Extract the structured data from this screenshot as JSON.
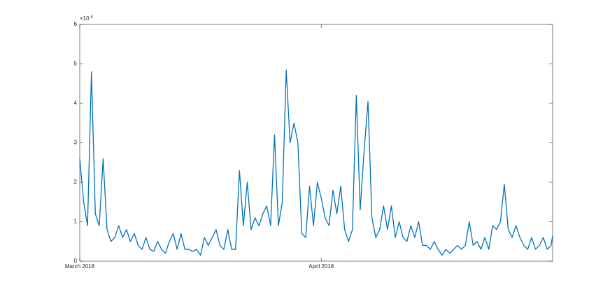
{
  "chart_data": {
    "type": "line",
    "axis_multiplier": {
      "base": "×10",
      "exponent": "-4"
    },
    "x": [
      0,
      0.5,
      1,
      1.5,
      2,
      2.5,
      3,
      3.5,
      4,
      4.5,
      5,
      5.5,
      6,
      6.5,
      7,
      7.5,
      8,
      8.5,
      9,
      9.5,
      10,
      10.5,
      11,
      11.5,
      12,
      12.5,
      13,
      13.5,
      14,
      14.5,
      15,
      15.5,
      16,
      16.5,
      17,
      17.5,
      18,
      18.5,
      19,
      19.5,
      20,
      20.5,
      21,
      21.5,
      22,
      22.5,
      23,
      23.5,
      24,
      24.5,
      25,
      25.5,
      26,
      26.5,
      27,
      27.5,
      28,
      28.5,
      29,
      29.5,
      30,
      30.5,
      31,
      31.5,
      32,
      32.5,
      33,
      33.5,
      34,
      34.5,
      35,
      35.5,
      36,
      36.5,
      37,
      37.5,
      38,
      38.5,
      39,
      39.5,
      40,
      40.5,
      41,
      41.5,
      42,
      42.5,
      43,
      43.5,
      44,
      44.5,
      45,
      45.5,
      46,
      46.5,
      47,
      47.5,
      48,
      48.5,
      49,
      49.5,
      50,
      50.5,
      51,
      51.5,
      52,
      52.5,
      53,
      53.5,
      54,
      54.5,
      55,
      55.5,
      56,
      56.5,
      57,
      57.5,
      58,
      58.5,
      59,
      59.5,
      60,
      60.5,
      60.7
    ],
    "series": [
      {
        "color": "#0072bd",
        "values": [
          2.6,
          1.5,
          0.9,
          4.8,
          1.2,
          0.9,
          2.6,
          0.8,
          0.5,
          0.6,
          0.9,
          0.6,
          0.8,
          0.5,
          0.7,
          0.4,
          0.3,
          0.6,
          0.3,
          0.25,
          0.5,
          0.3,
          0.2,
          0.5,
          0.7,
          0.3,
          0.7,
          0.3,
          0.3,
          0.25,
          0.3,
          0.15,
          0.6,
          0.4,
          0.6,
          0.8,
          0.4,
          0.3,
          0.8,
          0.3,
          0.3,
          2.3,
          0.9,
          2.0,
          0.8,
          1.1,
          0.9,
          1.2,
          1.4,
          0.9,
          3.2,
          0.9,
          1.5,
          4.85,
          3.0,
          3.5,
          3.0,
          0.7,
          0.6,
          1.9,
          0.9,
          2.0,
          1.6,
          1.1,
          0.9,
          1.8,
          1.2,
          1.9,
          0.8,
          0.5,
          0.8,
          4.2,
          1.3,
          2.8,
          4.05,
          1.1,
          0.6,
          0.8,
          1.4,
          0.8,
          1.4,
          0.6,
          1.0,
          0.6,
          0.5,
          0.9,
          0.6,
          1.0,
          0.4,
          0.4,
          0.3,
          0.5,
          0.3,
          0.15,
          0.3,
          0.2,
          0.3,
          0.4,
          0.3,
          0.4,
          1.0,
          0.4,
          0.5,
          0.3,
          0.6,
          0.3,
          0.9,
          0.8,
          1.0,
          1.95,
          0.8,
          0.6,
          0.9,
          0.6,
          0.4,
          0.3,
          0.6,
          0.3,
          0.4,
          0.6,
          0.3,
          0.4,
          0.65
        ]
      }
    ],
    "xlim": [
      0,
      60.7
    ],
    "xticks": [
      {
        "value": 0,
        "label": "March 2018"
      },
      {
        "value": 31,
        "label": "April 2018"
      }
    ],
    "ylim": [
      0,
      6
    ],
    "yticks": [
      0,
      1,
      2,
      3,
      4,
      5,
      6
    ]
  }
}
